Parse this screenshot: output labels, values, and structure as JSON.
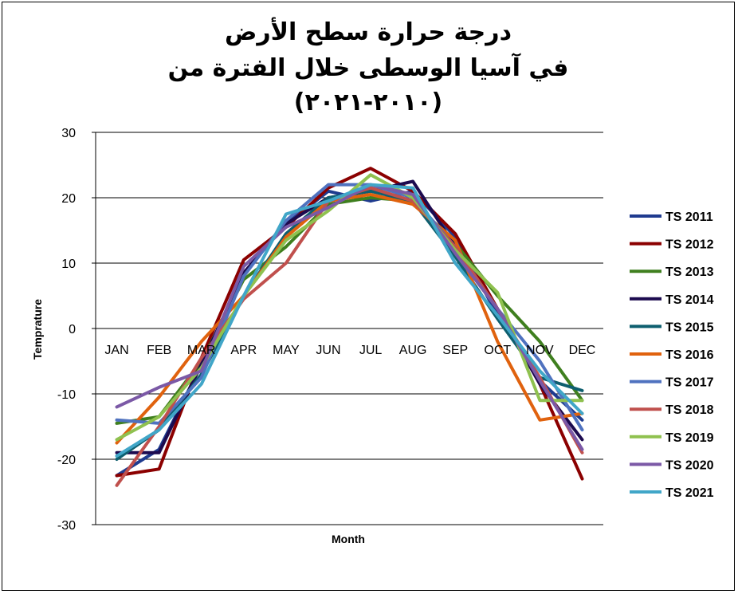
{
  "chart_data": {
    "type": "line",
    "title_lines": [
      "درجة حرارة سطح الأرض",
      "في آسيا الوسطى خلال الفترة من",
      "(٢٠١٠-٢٠٢١)"
    ],
    "xlabel": "Month",
    "ylabel": "Temprature",
    "ylim": [
      -30,
      30
    ],
    "yticks": [
      "30",
      "20",
      "10",
      "0",
      "-10",
      "-20",
      "-30"
    ],
    "categories": [
      "JAN",
      "FEB",
      "MAR",
      "APR",
      "MAY",
      "JUN",
      "JUL",
      "AUG",
      "SEP",
      "OCT",
      "NOV",
      "DEC"
    ],
    "grid": "horizontal",
    "legend_position": "right",
    "series": [
      {
        "name": "TS 2011",
        "color": "#1f3b8f",
        "values": [
          -22.5,
          -18.5,
          -5.5,
          8.5,
          16.0,
          21.0,
          19.5,
          21.0,
          14.0,
          2.0,
          -8.0,
          -14.0
        ]
      },
      {
        "name": "TS 2012",
        "color": "#8b0000",
        "values": [
          -22.5,
          -21.5,
          -4.5,
          10.5,
          15.5,
          21.5,
          24.5,
          21.0,
          14.5,
          3.0,
          -8.5,
          -23.0
        ]
      },
      {
        "name": "TS 2013",
        "color": "#3f7f1f",
        "values": [
          -14.5,
          -13.5,
          -5.0,
          7.5,
          12.5,
          19.0,
          20.0,
          19.5,
          13.0,
          5.0,
          -2.0,
          -11.0
        ]
      },
      {
        "name": "TS 2014",
        "color": "#1c0a4f",
        "values": [
          -19.0,
          -19.0,
          -5.5,
          8.5,
          16.0,
          20.0,
          21.0,
          22.5,
          12.5,
          3.0,
          -8.5,
          -17.0
        ]
      },
      {
        "name": "TS 2015",
        "color": "#0e5f6f",
        "values": [
          -20.0,
          -15.5,
          -7.0,
          5.0,
          14.5,
          20.0,
          21.0,
          19.5,
          11.0,
          1.5,
          -7.5,
          -9.5
        ]
      },
      {
        "name": "TS 2016",
        "color": "#e0620e",
        "values": [
          -17.5,
          -10.5,
          -2.0,
          5.0,
          14.0,
          19.5,
          20.5,
          19.0,
          13.5,
          -2.0,
          -14.0,
          -13.0
        ]
      },
      {
        "name": "TS 2017",
        "color": "#4f72bf",
        "values": [
          -14.0,
          -14.5,
          -7.5,
          8.0,
          16.5,
          22.0,
          22.0,
          20.0,
          12.5,
          3.0,
          -5.0,
          -15.5
        ]
      },
      {
        "name": "TS 2018",
        "color": "#c0504d",
        "values": [
          -24.0,
          -15.0,
          -4.5,
          4.5,
          10.0,
          19.5,
          21.5,
          19.5,
          12.5,
          3.0,
          -7.5,
          -19.0
        ]
      },
      {
        "name": "TS 2019",
        "color": "#8fc14f",
        "values": [
          -17.0,
          -13.5,
          -6.0,
          5.0,
          13.5,
          18.0,
          23.5,
          20.0,
          12.0,
          5.5,
          -11.0,
          -11.0
        ]
      },
      {
        "name": "TS 2020",
        "color": "#7b59a6",
        "values": [
          -12.0,
          -9.0,
          -6.5,
          9.5,
          15.5,
          18.5,
          22.0,
          20.5,
          11.5,
          3.0,
          -8.0,
          -18.5
        ]
      },
      {
        "name": "TS 2021",
        "color": "#41a6c8",
        "values": [
          -19.5,
          -15.5,
          -8.5,
          5.0,
          17.5,
          19.5,
          22.0,
          21.5,
          10.0,
          2.0,
          -6.5,
          -13.0
        ]
      }
    ]
  }
}
